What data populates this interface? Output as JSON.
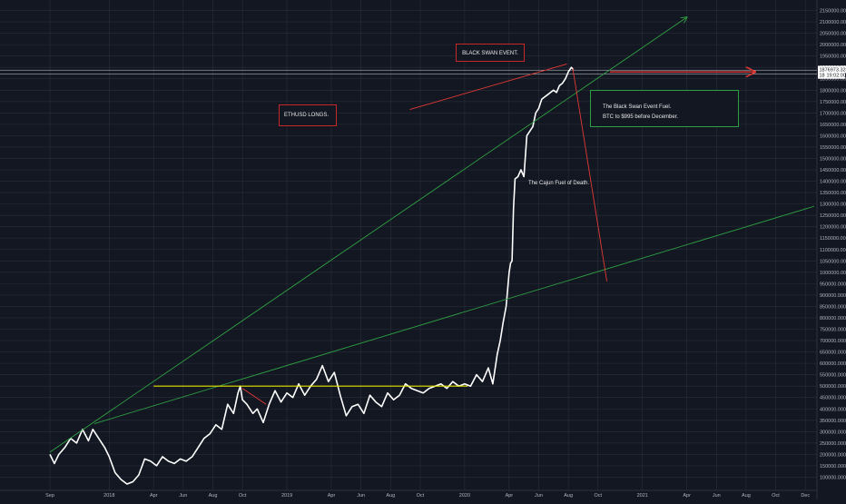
{
  "chart_data": {
    "type": "line",
    "title": "",
    "xlabel": "",
    "ylabel": "",
    "grid": true,
    "colors": {
      "background": "#131722",
      "grid": "#2a2e39",
      "price": "#ffffff",
      "trend": "#2ea043",
      "support": "#e6e600",
      "red": "#e53935",
      "box_red": "#c62828",
      "box_green": "#2ea043"
    },
    "ylim": [
      50000,
      2180000
    ],
    "y_ticks": [
      "100000.0000",
      "150000.0000",
      "200000.0000",
      "250000.0000",
      "300000.0000",
      "350000.0000",
      "400000.0000",
      "450000.0000",
      "500000.0000",
      "550000.0000",
      "600000.0000",
      "650000.0000",
      "700000.0000",
      "750000.0000",
      "800000.0000",
      "850000.0000",
      "900000.0000",
      "950000.0000",
      "1000000.0000",
      "1050000.0000",
      "1100000.0000",
      "1150000.0000",
      "1200000.0000",
      "1250000.0000",
      "1300000.0000",
      "1350000.0000",
      "1400000.0000",
      "1450000.0000",
      "1500000.0000",
      "1550000.0000",
      "1600000.0000",
      "1650000.0000",
      "1700000.0000",
      "1750000.0000",
      "1800000.0000",
      "1850000.0000",
      "1900000.0000",
      "1950000.0000",
      "2000000.0000",
      "2050000.0000",
      "2100000.0000",
      "2150000.0000"
    ],
    "x_ticks": [
      "Sep",
      "2018",
      "Apr",
      "Jun",
      "Aug",
      "Oct",
      "2019",
      "Apr",
      "Jun",
      "Aug",
      "Oct",
      "2020",
      "Apr",
      "Jun",
      "Aug",
      "Oct",
      "2021",
      "Apr",
      "Jun",
      "Aug",
      "Oct",
      "Dec"
    ],
    "x_tick_months": [
      8,
      12,
      15,
      17,
      19,
      21,
      24,
      27,
      29,
      31,
      33,
      36,
      39,
      41,
      43,
      45,
      48,
      51,
      53,
      55,
      57,
      59
    ],
    "xlim_months": [
      8.0,
      59.6
    ],
    "price_series": {
      "name": "",
      "x_months": [
        8.0,
        8.3,
        8.6,
        9.0,
        9.4,
        9.8,
        10.2,
        10.6,
        10.9,
        11.3,
        11.7,
        12.0,
        12.4,
        12.8,
        13.2,
        13.6,
        14.0,
        14.4,
        14.8,
        15.2,
        15.6,
        16.0,
        16.4,
        16.8,
        17.2,
        17.6,
        18.0,
        18.4,
        18.8,
        19.2,
        19.6,
        20.0,
        20.4,
        20.7,
        20.85,
        21.0,
        21.3,
        21.7,
        22.0,
        22.4,
        22.8,
        23.2,
        23.6,
        24.0,
        24.4,
        24.8,
        25.2,
        25.6,
        26.0,
        26.4,
        26.8,
        27.2,
        27.6,
        28.0,
        28.4,
        28.8,
        29.2,
        29.6,
        30.0,
        30.4,
        30.8,
        31.2,
        31.6,
        32.0,
        32.4,
        32.8,
        33.2,
        33.6,
        34.0,
        34.4,
        34.8,
        35.2,
        35.6,
        36.0,
        36.4,
        36.8,
        37.2,
        37.6,
        37.9,
        38.2,
        38.4,
        38.6,
        38.8,
        39.0,
        39.1,
        39.2,
        39.3,
        39.4,
        39.6,
        39.8,
        40.0,
        40.2,
        40.4,
        40.6,
        40.8,
        41.0,
        41.2,
        41.4,
        41.6,
        41.8,
        42.0,
        42.2,
        42.4,
        42.6,
        42.8,
        43.0,
        43.2,
        43.35
      ],
      "values": [
        200000,
        160000,
        200000,
        230000,
        270000,
        250000,
        310000,
        260000,
        310000,
        270000,
        230000,
        190000,
        120000,
        90000,
        70000,
        80000,
        110000,
        180000,
        170000,
        150000,
        190000,
        170000,
        160000,
        180000,
        170000,
        190000,
        230000,
        270000,
        290000,
        330000,
        310000,
        420000,
        380000,
        470000,
        500000,
        440000,
        420000,
        380000,
        400000,
        340000,
        420000,
        480000,
        430000,
        470000,
        450000,
        510000,
        460000,
        500000,
        530000,
        590000,
        520000,
        560000,
        460000,
        370000,
        410000,
        420000,
        380000,
        460000,
        430000,
        410000,
        470000,
        440000,
        460000,
        510000,
        490000,
        480000,
        470000,
        490000,
        500000,
        510000,
        490000,
        520000,
        500000,
        510000,
        500000,
        550000,
        520000,
        580000,
        510000,
        640000,
        700000,
        780000,
        850000,
        1000000,
        1040000,
        1050000,
        1280000,
        1410000,
        1420000,
        1450000,
        1420000,
        1600000,
        1620000,
        1640000,
        1700000,
        1720000,
        1760000,
        1770000,
        1780000,
        1790000,
        1800000,
        1790000,
        1820000,
        1830000,
        1850000,
        1880000,
        1900000,
        1890000
      ]
    },
    "lines": [
      {
        "kind": "trend",
        "color": "trend",
        "x": [
          8.0,
          51.0
        ],
        "y": [
          210000,
          2120000
        ],
        "arrow": true
      },
      {
        "kind": "trend",
        "color": "trend",
        "x": [
          11.0,
          59.6
        ],
        "y": [
          335000,
          1290000
        ],
        "arrow": false
      },
      {
        "kind": "support",
        "color": "support",
        "x": [
          15.0,
          36.2
        ],
        "y": [
          500000,
          500000
        ],
        "arrow": false
      },
      {
        "kind": "target",
        "color": "red",
        "x": [
          45.8,
          55.6
        ],
        "y": [
          1880000,
          1880000
        ],
        "arrow": true
      },
      {
        "kind": "fall",
        "color": "red",
        "x": [
          43.3,
          45.6
        ],
        "y": [
          1895000,
          960000
        ],
        "arrow": false
      },
      {
        "kind": "longs",
        "color": "red",
        "x": [
          32.3,
          42.9
        ],
        "y": [
          1715000,
          1915000
        ],
        "arrow": false
      },
      {
        "kind": "minor",
        "color": "red",
        "x": [
          21.0,
          22.6
        ],
        "y": [
          490000,
          420000
        ],
        "arrow": false
      }
    ],
    "horizontal_rules": [
      {
        "y": 1888000,
        "color": "#cfd2d8"
      },
      {
        "y": 1870000,
        "color": "#cfd2d8"
      }
    ],
    "price_tags": [
      {
        "text": "1876973.3289",
        "y": 1891000,
        "bg": "#ffffff",
        "fg": "#131722"
      },
      {
        "text": "1850000",
        "y": 1866000,
        "bg": "#ffffff",
        "fg": "#131722"
      },
      {
        "text": "19:02:00",
        "y": 1866000,
        "bg": "#ffffff",
        "fg": "#131722"
      }
    ],
    "annotations": {
      "black_swan": {
        "text": "BLACK SWAN EVENT."
      },
      "ethusd": {
        "text": "ETHUSD LONGS."
      },
      "fuel_line1": {
        "text": "The Black Swan Event Fuel."
      },
      "fuel_line2": {
        "text": "BTC to $995 before December."
      },
      "cajun": {
        "text": "The Cajun Fuel of Death."
      }
    }
  }
}
